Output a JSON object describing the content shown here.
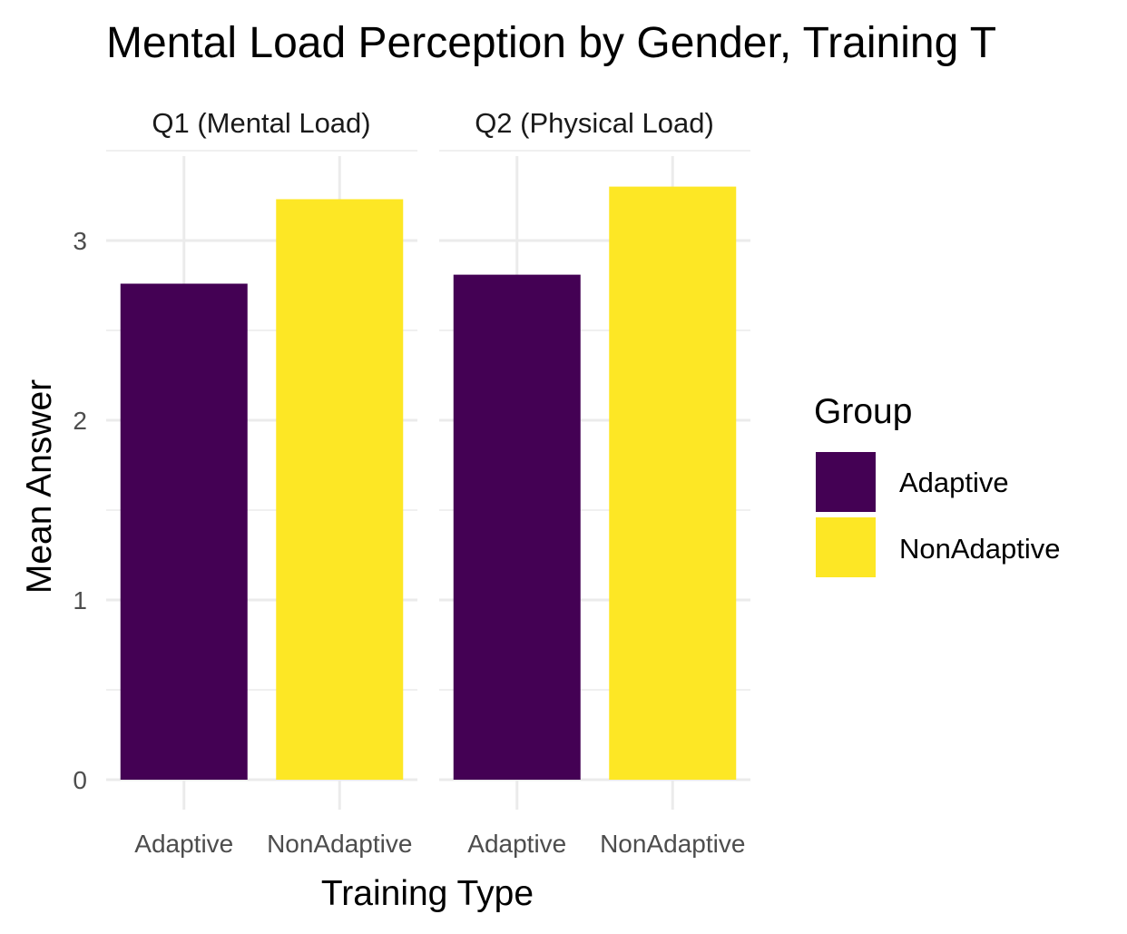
{
  "chart_data": {
    "type": "bar",
    "title": "Mental Load Perception by Gender, Training T",
    "xlabel": "Training Type",
    "ylabel": "Mean Answer",
    "ylim": [
      0,
      3.4
    ],
    "yticks": [
      "0",
      "1",
      "2",
      "3"
    ],
    "grid": true,
    "categories": [
      "Adaptive",
      "NonAdaptive"
    ],
    "facets": [
      {
        "label": "Q1 (Mental Load)",
        "values": [
          2.76,
          3.23
        ]
      },
      {
        "label": "Q2 (Physical Load)",
        "values": [
          2.81,
          3.3
        ]
      }
    ],
    "legend": {
      "title": "Group",
      "position": "right",
      "entries": [
        {
          "name": "Adaptive",
          "color": "#440154"
        },
        {
          "name": "NonAdaptive",
          "color": "#FDE725"
        }
      ]
    }
  }
}
